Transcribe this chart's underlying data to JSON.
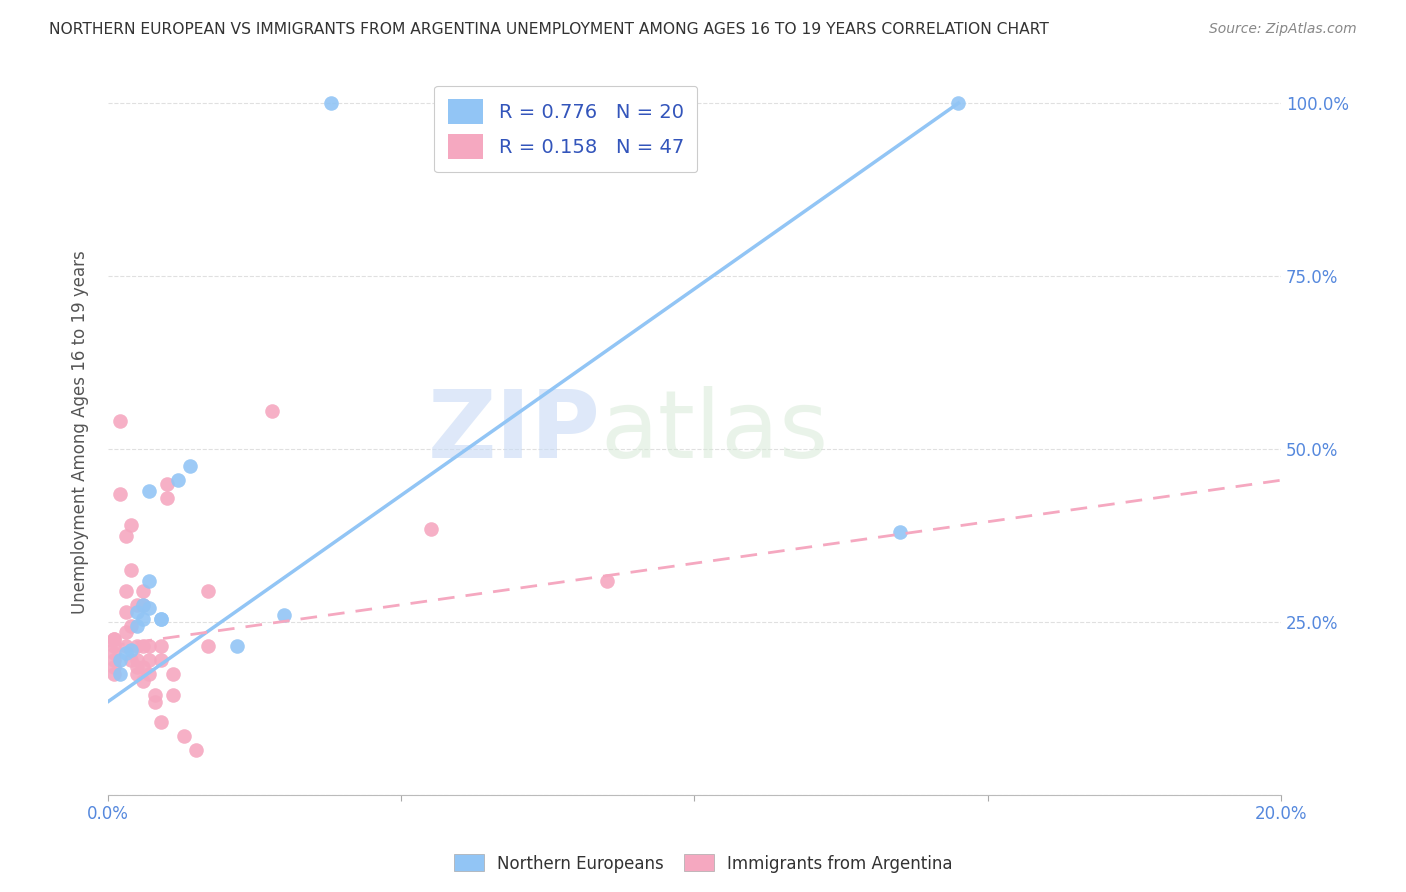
{
  "title": "NORTHERN EUROPEAN VS IMMIGRANTS FROM ARGENTINA UNEMPLOYMENT AMONG AGES 16 TO 19 YEARS CORRELATION CHART",
  "source": "Source: ZipAtlas.com",
  "ylabel": "Unemployment Among Ages 16 to 19 years",
  "xlim": [
    0.0,
    0.2
  ],
  "ylim": [
    0.0,
    1.05
  ],
  "watermark_zip": "ZIP",
  "watermark_atlas": "atlas",
  "legend1_label": "R = 0.776   N = 20",
  "legend2_label": "R = 0.158   N = 47",
  "color_blue": "#92c5f5",
  "color_pink": "#f5a8c0",
  "blue_scatter": [
    [
      0.002,
      0.195
    ],
    [
      0.002,
      0.175
    ],
    [
      0.003,
      0.205
    ],
    [
      0.004,
      0.21
    ],
    [
      0.005,
      0.245
    ],
    [
      0.005,
      0.265
    ],
    [
      0.006,
      0.275
    ],
    [
      0.006,
      0.255
    ],
    [
      0.007,
      0.27
    ],
    [
      0.007,
      0.31
    ],
    [
      0.007,
      0.44
    ],
    [
      0.009,
      0.255
    ],
    [
      0.009,
      0.255
    ],
    [
      0.012,
      0.455
    ],
    [
      0.014,
      0.475
    ],
    [
      0.022,
      0.215
    ],
    [
      0.03,
      0.26
    ],
    [
      0.038,
      1.0
    ],
    [
      0.135,
      0.38
    ],
    [
      0.145,
      1.0
    ]
  ],
  "pink_scatter": [
    [
      0.001,
      0.225
    ],
    [
      0.001,
      0.215
    ],
    [
      0.001,
      0.205
    ],
    [
      0.001,
      0.195
    ],
    [
      0.001,
      0.185
    ],
    [
      0.001,
      0.225
    ],
    [
      0.001,
      0.175
    ],
    [
      0.002,
      0.54
    ],
    [
      0.002,
      0.435
    ],
    [
      0.003,
      0.215
    ],
    [
      0.003,
      0.235
    ],
    [
      0.003,
      0.265
    ],
    [
      0.003,
      0.375
    ],
    [
      0.003,
      0.295
    ],
    [
      0.004,
      0.325
    ],
    [
      0.004,
      0.39
    ],
    [
      0.004,
      0.195
    ],
    [
      0.004,
      0.245
    ],
    [
      0.005,
      0.275
    ],
    [
      0.005,
      0.215
    ],
    [
      0.005,
      0.185
    ],
    [
      0.005,
      0.175
    ],
    [
      0.005,
      0.195
    ],
    [
      0.006,
      0.185
    ],
    [
      0.006,
      0.215
    ],
    [
      0.006,
      0.295
    ],
    [
      0.006,
      0.275
    ],
    [
      0.006,
      0.165
    ],
    [
      0.007,
      0.195
    ],
    [
      0.007,
      0.215
    ],
    [
      0.007,
      0.175
    ],
    [
      0.008,
      0.145
    ],
    [
      0.008,
      0.135
    ],
    [
      0.009,
      0.215
    ],
    [
      0.009,
      0.195
    ],
    [
      0.009,
      0.105
    ],
    [
      0.01,
      0.45
    ],
    [
      0.01,
      0.43
    ],
    [
      0.011,
      0.175
    ],
    [
      0.011,
      0.145
    ],
    [
      0.013,
      0.085
    ],
    [
      0.015,
      0.065
    ],
    [
      0.017,
      0.295
    ],
    [
      0.017,
      0.215
    ],
    [
      0.028,
      0.555
    ],
    [
      0.055,
      0.385
    ],
    [
      0.085,
      0.31
    ]
  ],
  "blue_line": [
    [
      0.0,
      0.135
    ],
    [
      0.145,
      1.0
    ]
  ],
  "pink_line": [
    [
      0.0,
      0.215
    ],
    [
      0.2,
      0.455
    ]
  ],
  "xticks": [
    0.0,
    0.05,
    0.1,
    0.15,
    0.2
  ],
  "xtick_labels": [
    "0.0%",
    "",
    "",
    "",
    "20.0%"
  ],
  "yticks": [
    0.0,
    0.25,
    0.5,
    0.75,
    1.0
  ],
  "ytick_labels_right": [
    "",
    "25.0%",
    "50.0%",
    "75.0%",
    "100.0%"
  ],
  "background_color": "#ffffff",
  "grid_color": "#e0e0e0",
  "legend_label_color": "#3355bb",
  "tick_color": "#5588dd",
  "bottom_legend": [
    "Northern Europeans",
    "Immigrants from Argentina"
  ]
}
